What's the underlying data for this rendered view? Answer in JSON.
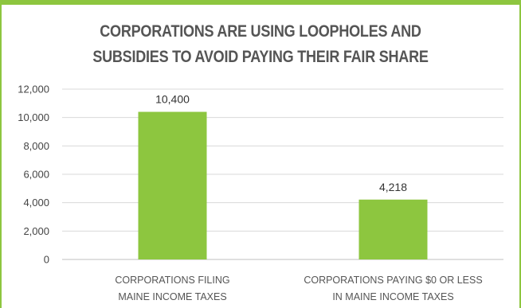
{
  "chart_data": {
    "type": "bar",
    "title_lines": [
      "CORPORATIONS ARE USING LOOPHOLES AND",
      "SUBSIDIES TO AVOID PAYING THEIR FAIR SHARE"
    ],
    "categories": [
      [
        "CORPORATIONS FILING",
        "MAINE INCOME TAXES"
      ],
      [
        "CORPORATIONS PAYING $0 OR LESS",
        "IN MAINE INCOME TAXES"
      ]
    ],
    "values": [
      10400,
      4218
    ],
    "data_labels": [
      "10,400",
      "4,218"
    ],
    "yticks": [
      0,
      2000,
      4000,
      6000,
      8000,
      10000,
      12000
    ],
    "ytick_labels": [
      "0",
      "2,000",
      "4,000",
      "6,000",
      "8,000",
      "10,000",
      "12,000"
    ],
    "ylim": [
      0,
      12000
    ],
    "grid": true,
    "legend": "none",
    "colors": {
      "bar": "#8dc63f",
      "grid": "#d9d9d9",
      "frame": "#8dc63f",
      "title": "#555555"
    }
  }
}
